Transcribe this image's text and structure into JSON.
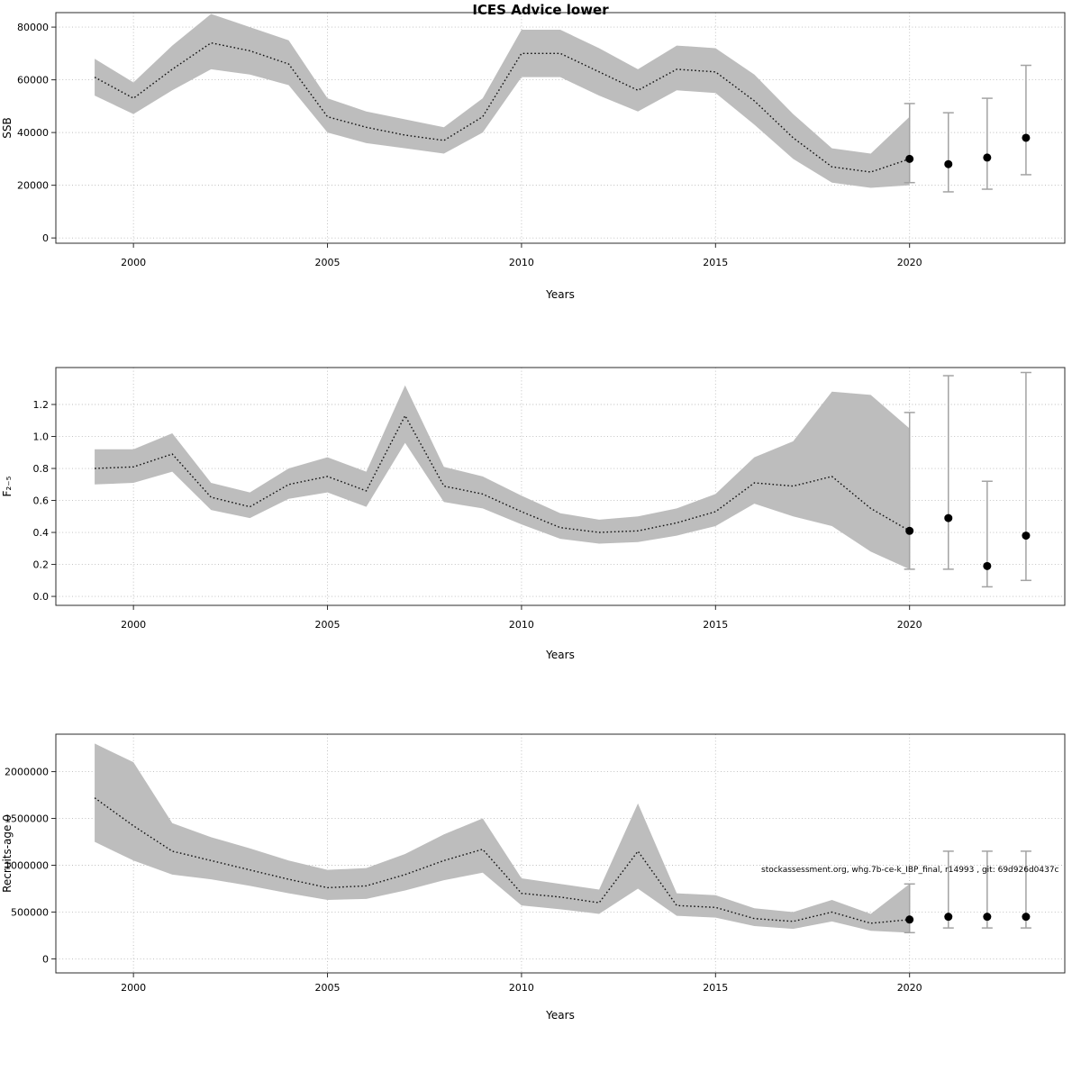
{
  "title": "ICES Advice lower",
  "annotation": "stockassessment.org, whg.7b-ce-k_IBP_final, r14993 , git: 69d926d0437c",
  "colors": {
    "band": "#bdbdbd",
    "line": "#111111",
    "errorbar": "#a3a3a3",
    "point": "#000000",
    "grid": "#bbbbbb"
  },
  "chart_data": [
    {
      "type": "line",
      "name": "ssb",
      "title": "",
      "xlabel": "Years",
      "ylabel": "SSB",
      "grid": true,
      "legend": null,
      "xlim": [
        1998,
        2024
      ],
      "ylim": [
        -2000,
        85500
      ],
      "xticks": [
        2000,
        2005,
        2010,
        2015,
        2020
      ],
      "yticks": {
        "values": [
          0,
          20000,
          40000,
          60000,
          80000
        ],
        "labels": [
          "0",
          "20000",
          "40000",
          "60000",
          "80000"
        ]
      },
      "x": [
        1999,
        2000,
        2001,
        2002,
        2003,
        2004,
        2005,
        2006,
        2007,
        2008,
        2009,
        2010,
        2011,
        2012,
        2013,
        2014,
        2015,
        2016,
        2017,
        2018,
        2019,
        2020
      ],
      "series": [
        {
          "name": "estimate",
          "values": [
            61000,
            53000,
            64000,
            74000,
            71000,
            66000,
            46000,
            42000,
            39000,
            37000,
            46000,
            70000,
            70000,
            63000,
            56000,
            64000,
            63000,
            52000,
            38000,
            27000,
            25000,
            30000
          ]
        }
      ],
      "band": {
        "lower": [
          54000,
          47000,
          56000,
          64000,
          62000,
          58000,
          40000,
          36000,
          34000,
          32000,
          40000,
          61000,
          61000,
          54000,
          48000,
          56000,
          55000,
          43000,
          30000,
          21000,
          19000,
          20000
        ],
        "upper": [
          68000,
          59000,
          73000,
          85000,
          80000,
          75000,
          53000,
          48000,
          45000,
          42000,
          53000,
          79000,
          79000,
          72000,
          64000,
          73000,
          72000,
          62000,
          47000,
          34000,
          32000,
          46000
        ]
      },
      "forecast_points": {
        "x": [
          2020,
          2021,
          2022,
          2023
        ],
        "y": [
          30000,
          28000,
          30500,
          38000
        ],
        "lower": [
          21000,
          17500,
          18500,
          24000
        ],
        "upper": [
          51000,
          47500,
          53000,
          65500
        ]
      }
    },
    {
      "type": "line",
      "name": "f",
      "title": "",
      "xlabel": "Years",
      "ylabel": "F₂₋₅",
      "grid": true,
      "legend": null,
      "xlim": [
        1998,
        2024
      ],
      "ylim": [
        -0.056,
        1.431
      ],
      "xticks": [
        2000,
        2005,
        2010,
        2015,
        2020
      ],
      "yticks": {
        "values": [
          0.0,
          0.2,
          0.4,
          0.6,
          0.8,
          1.0,
          1.2
        ],
        "labels": [
          "0.0",
          "0.2",
          "0.4",
          "0.6",
          "0.8",
          "1.0",
          "1.2"
        ]
      },
      "x": [
        1999,
        2000,
        2001,
        2002,
        2003,
        2004,
        2005,
        2006,
        2007,
        2008,
        2009,
        2010,
        2011,
        2012,
        2013,
        2014,
        2015,
        2016,
        2017,
        2018,
        2019,
        2020
      ],
      "series": [
        {
          "name": "estimate",
          "values": [
            0.8,
            0.81,
            0.89,
            0.62,
            0.56,
            0.7,
            0.75,
            0.66,
            1.13,
            0.69,
            0.64,
            0.53,
            0.43,
            0.4,
            0.41,
            0.46,
            0.53,
            0.71,
            0.69,
            0.75,
            0.55,
            0.41
          ]
        }
      ],
      "band": {
        "lower": [
          0.7,
          0.71,
          0.78,
          0.54,
          0.49,
          0.61,
          0.65,
          0.56,
          0.96,
          0.59,
          0.55,
          0.45,
          0.36,
          0.33,
          0.34,
          0.38,
          0.44,
          0.58,
          0.5,
          0.44,
          0.28,
          0.17
        ],
        "upper": [
          0.92,
          0.92,
          1.02,
          0.71,
          0.65,
          0.8,
          0.87,
          0.78,
          1.32,
          0.81,
          0.75,
          0.63,
          0.52,
          0.48,
          0.5,
          0.55,
          0.64,
          0.87,
          0.97,
          1.28,
          1.26,
          1.05
        ]
      },
      "forecast_points": {
        "x": [
          2020,
          2021,
          2022,
          2023
        ],
        "y": [
          0.41,
          0.49,
          0.19,
          0.38
        ],
        "lower": [
          0.17,
          0.17,
          0.06,
          0.1
        ],
        "upper": [
          1.15,
          1.38,
          0.72,
          1.4
        ]
      }
    },
    {
      "type": "line",
      "name": "recruits",
      "title": "",
      "xlabel": "Years",
      "ylabel": "Recruits-age 0",
      "grid": true,
      "legend": null,
      "xlim": [
        1998,
        2024
      ],
      "ylim": [
        -150000,
        2400000
      ],
      "xticks": [
        2000,
        2005,
        2010,
        2015,
        2020
      ],
      "yticks": {
        "values": [
          0,
          500000,
          1000000,
          1500000,
          2000000
        ],
        "labels": [
          "0",
          "500000",
          "1000000",
          "1500000",
          "2000000"
        ]
      },
      "x": [
        1999,
        2000,
        2001,
        2002,
        2003,
        2004,
        2005,
        2006,
        2007,
        2008,
        2009,
        2010,
        2011,
        2012,
        2013,
        2014,
        2015,
        2016,
        2017,
        2018,
        2019,
        2020
      ],
      "series": [
        {
          "name": "estimate",
          "values": [
            1720000,
            1420000,
            1150000,
            1050000,
            950000,
            850000,
            760000,
            780000,
            900000,
            1050000,
            1170000,
            700000,
            660000,
            600000,
            1150000,
            570000,
            550000,
            430000,
            400000,
            500000,
            380000,
            420000
          ]
        }
      ],
      "band": {
        "lower": [
          1250000,
          1050000,
          900000,
          850000,
          780000,
          700000,
          630000,
          640000,
          730000,
          840000,
          920000,
          570000,
          530000,
          480000,
          750000,
          460000,
          440000,
          350000,
          320000,
          400000,
          300000,
          280000
        ],
        "upper": [
          2300000,
          2100000,
          1450000,
          1300000,
          1180000,
          1050000,
          950000,
          970000,
          1120000,
          1330000,
          1500000,
          860000,
          800000,
          740000,
          1660000,
          700000,
          680000,
          540000,
          500000,
          630000,
          480000,
          800000
        ]
      },
      "forecast_points": {
        "x": [
          2020,
          2021,
          2022,
          2023
        ],
        "y": [
          420000,
          450000,
          450000,
          450000
        ],
        "lower": [
          280000,
          330000,
          330000,
          330000
        ],
        "upper": [
          800000,
          1150000,
          1150000,
          1150000
        ]
      }
    }
  ]
}
